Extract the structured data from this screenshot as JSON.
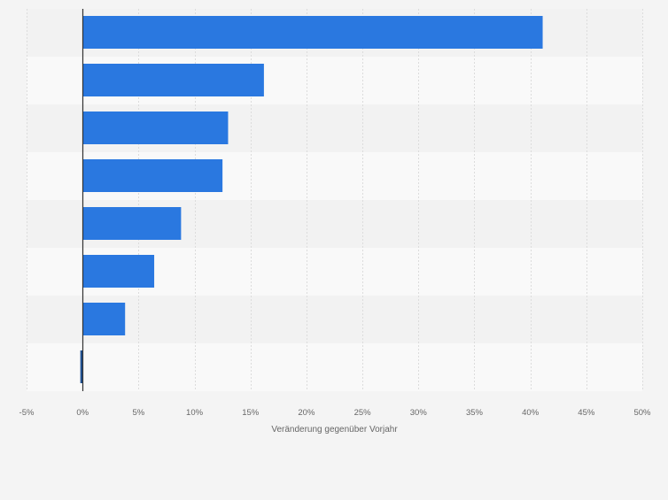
{
  "chart_data": {
    "type": "bar",
    "orientation": "horizontal",
    "categories": [
      "",
      "",
      "",
      "",
      "",
      "",
      "",
      ""
    ],
    "values": [
      41.1,
      16.2,
      13.0,
      12.5,
      8.8,
      6.4,
      3.8,
      -0.2
    ],
    "xlabel": "Veränderung gegenüber Vorjahr",
    "xlim": [
      -5,
      50
    ],
    "xticks": [
      -5,
      0,
      5,
      10,
      15,
      20,
      25,
      30,
      35,
      40,
      45,
      50
    ],
    "xtick_labels": [
      "-5%",
      "0%",
      "5%",
      "10%",
      "15%",
      "20%",
      "25%",
      "30%",
      "35%",
      "40%",
      "45%",
      "50%"
    ],
    "grid": true,
    "bar_color": "#2a78e0",
    "negative_bar_color": "#1f4f8f"
  }
}
